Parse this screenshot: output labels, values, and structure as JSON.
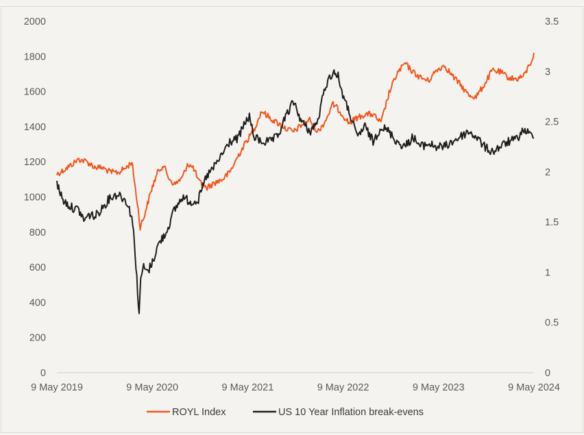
{
  "chart_data": {
    "type": "line",
    "title": "",
    "xlabel": "",
    "ylabel_left": "",
    "ylabel_right": "",
    "left_axis": {
      "min": 0,
      "max": 2000,
      "ticks": [
        "0",
        "200",
        "400",
        "600",
        "800",
        "1000",
        "1200",
        "1400",
        "1600",
        "1800",
        "2000"
      ]
    },
    "right_axis": {
      "min": 0,
      "max": 3.5,
      "ticks": [
        "0",
        "0.5",
        "1",
        "1.5",
        "2",
        "2.5",
        "3",
        "3.5"
      ]
    },
    "x_axis": {
      "start": "2019-05-09",
      "end": "2024-05-09",
      "ticks": [
        "9 May 2019",
        "9 May 2020",
        "9 May 2021",
        "9 May 2022",
        "9 May 2023",
        "9 May 2024"
      ]
    },
    "grid": false,
    "legend_position": "bottom-center",
    "series": [
      {
        "name": "ROYL Index",
        "axis": "left",
        "color": "#f0561e",
        "points": [
          [
            "2019-05-09",
            1130
          ],
          [
            "2019-06-01",
            1150
          ],
          [
            "2019-07-01",
            1180
          ],
          [
            "2019-08-01",
            1215
          ],
          [
            "2019-09-01",
            1200
          ],
          [
            "2019-10-01",
            1170
          ],
          [
            "2019-11-01",
            1165
          ],
          [
            "2019-12-01",
            1140
          ],
          [
            "2020-01-01",
            1140
          ],
          [
            "2020-02-01",
            1170
          ],
          [
            "2020-02-20",
            1200
          ],
          [
            "2020-03-01",
            1090
          ],
          [
            "2020-03-15",
            930
          ],
          [
            "2020-03-23",
            830
          ],
          [
            "2020-04-05",
            880
          ],
          [
            "2020-04-20",
            960
          ],
          [
            "2020-05-09",
            1060
          ],
          [
            "2020-06-01",
            1150
          ],
          [
            "2020-06-20",
            1180
          ],
          [
            "2020-07-10",
            1110
          ],
          [
            "2020-08-01",
            1070
          ],
          [
            "2020-09-01",
            1110
          ],
          [
            "2020-09-20",
            1190
          ],
          [
            "2020-10-15",
            1160
          ],
          [
            "2020-11-01",
            1090
          ],
          [
            "2020-12-01",
            1050
          ],
          [
            "2021-01-01",
            1080
          ],
          [
            "2021-02-01",
            1100
          ],
          [
            "2021-03-01",
            1140
          ],
          [
            "2021-04-01",
            1230
          ],
          [
            "2021-05-01",
            1310
          ],
          [
            "2021-06-01",
            1380
          ],
          [
            "2021-07-01",
            1490
          ],
          [
            "2021-08-01",
            1450
          ],
          [
            "2021-09-01",
            1420
          ],
          [
            "2021-10-01",
            1390
          ],
          [
            "2021-11-01",
            1370
          ],
          [
            "2021-12-01",
            1410
          ],
          [
            "2022-01-01",
            1440
          ],
          [
            "2022-02-01",
            1370
          ],
          [
            "2022-03-01",
            1430
          ],
          [
            "2022-04-01",
            1530
          ],
          [
            "2022-05-01",
            1480
          ],
          [
            "2022-06-01",
            1420
          ],
          [
            "2022-07-01",
            1450
          ],
          [
            "2022-08-01",
            1470
          ],
          [
            "2022-09-01",
            1470
          ],
          [
            "2022-10-01",
            1420
          ],
          [
            "2022-11-01",
            1590
          ],
          [
            "2022-12-01",
            1700
          ],
          [
            "2023-01-01",
            1760
          ],
          [
            "2023-02-01",
            1710
          ],
          [
            "2023-03-01",
            1680
          ],
          [
            "2023-04-01",
            1660
          ],
          [
            "2023-05-01",
            1720
          ],
          [
            "2023-06-01",
            1750
          ],
          [
            "2023-07-01",
            1690
          ],
          [
            "2023-08-01",
            1640
          ],
          [
            "2023-09-01",
            1580
          ],
          [
            "2023-10-01",
            1570
          ],
          [
            "2023-11-01",
            1640
          ],
          [
            "2023-12-01",
            1720
          ],
          [
            "2024-01-01",
            1710
          ],
          [
            "2024-02-01",
            1680
          ],
          [
            "2024-03-01",
            1670
          ],
          [
            "2024-04-01",
            1690
          ],
          [
            "2024-05-01",
            1780
          ],
          [
            "2024-05-09",
            1820
          ]
        ]
      },
      {
        "name": "US 10 Year Inflation break-evens",
        "axis": "right",
        "color": "#1e1e1e",
        "points": [
          [
            "2019-05-09",
            1.88
          ],
          [
            "2019-06-01",
            1.72
          ],
          [
            "2019-07-01",
            1.65
          ],
          [
            "2019-08-01",
            1.62
          ],
          [
            "2019-08-20",
            1.52
          ],
          [
            "2019-09-15",
            1.58
          ],
          [
            "2019-10-01",
            1.55
          ],
          [
            "2019-11-01",
            1.65
          ],
          [
            "2019-12-01",
            1.75
          ],
          [
            "2020-01-01",
            1.78
          ],
          [
            "2020-02-01",
            1.7
          ],
          [
            "2020-02-20",
            1.55
          ],
          [
            "2020-03-01",
            1.3
          ],
          [
            "2020-03-10",
            0.95
          ],
          [
            "2020-03-19",
            0.55
          ],
          [
            "2020-03-25",
            0.95
          ],
          [
            "2020-04-05",
            1.05
          ],
          [
            "2020-04-20",
            1.0
          ],
          [
            "2020-05-09",
            1.1
          ],
          [
            "2020-06-01",
            1.28
          ],
          [
            "2020-07-01",
            1.4
          ],
          [
            "2020-08-01",
            1.62
          ],
          [
            "2020-09-01",
            1.75
          ],
          [
            "2020-10-01",
            1.7
          ],
          [
            "2020-11-01",
            1.72
          ],
          [
            "2020-12-01",
            1.95
          ],
          [
            "2021-01-01",
            2.05
          ],
          [
            "2021-02-01",
            2.18
          ],
          [
            "2021-03-01",
            2.3
          ],
          [
            "2021-04-01",
            2.33
          ],
          [
            "2021-05-01",
            2.5
          ],
          [
            "2021-05-15",
            2.55
          ],
          [
            "2021-06-01",
            2.35
          ],
          [
            "2021-07-01",
            2.3
          ],
          [
            "2021-08-01",
            2.3
          ],
          [
            "2021-09-01",
            2.35
          ],
          [
            "2021-10-01",
            2.55
          ],
          [
            "2021-11-01",
            2.7
          ],
          [
            "2021-12-01",
            2.5
          ],
          [
            "2022-01-01",
            2.4
          ],
          [
            "2022-02-01",
            2.5
          ],
          [
            "2022-03-01",
            2.85
          ],
          [
            "2022-04-01",
            3.0
          ],
          [
            "2022-04-20",
            2.95
          ],
          [
            "2022-05-15",
            2.7
          ],
          [
            "2022-06-01",
            2.6
          ],
          [
            "2022-07-01",
            2.35
          ],
          [
            "2022-08-01",
            2.45
          ],
          [
            "2022-09-01",
            2.3
          ],
          [
            "2022-10-01",
            2.45
          ],
          [
            "2022-11-01",
            2.4
          ],
          [
            "2022-12-01",
            2.3
          ],
          [
            "2023-01-01",
            2.25
          ],
          [
            "2023-02-01",
            2.35
          ],
          [
            "2023-03-01",
            2.25
          ],
          [
            "2023-04-01",
            2.28
          ],
          [
            "2023-05-01",
            2.25
          ],
          [
            "2023-06-01",
            2.25
          ],
          [
            "2023-07-01",
            2.3
          ],
          [
            "2023-08-01",
            2.35
          ],
          [
            "2023-09-01",
            2.4
          ],
          [
            "2023-10-01",
            2.35
          ],
          [
            "2023-11-01",
            2.25
          ],
          [
            "2023-12-01",
            2.2
          ],
          [
            "2024-01-01",
            2.25
          ],
          [
            "2024-02-01",
            2.3
          ],
          [
            "2024-03-01",
            2.32
          ],
          [
            "2024-04-01",
            2.42
          ],
          [
            "2024-05-09",
            2.34
          ]
        ]
      }
    ]
  }
}
